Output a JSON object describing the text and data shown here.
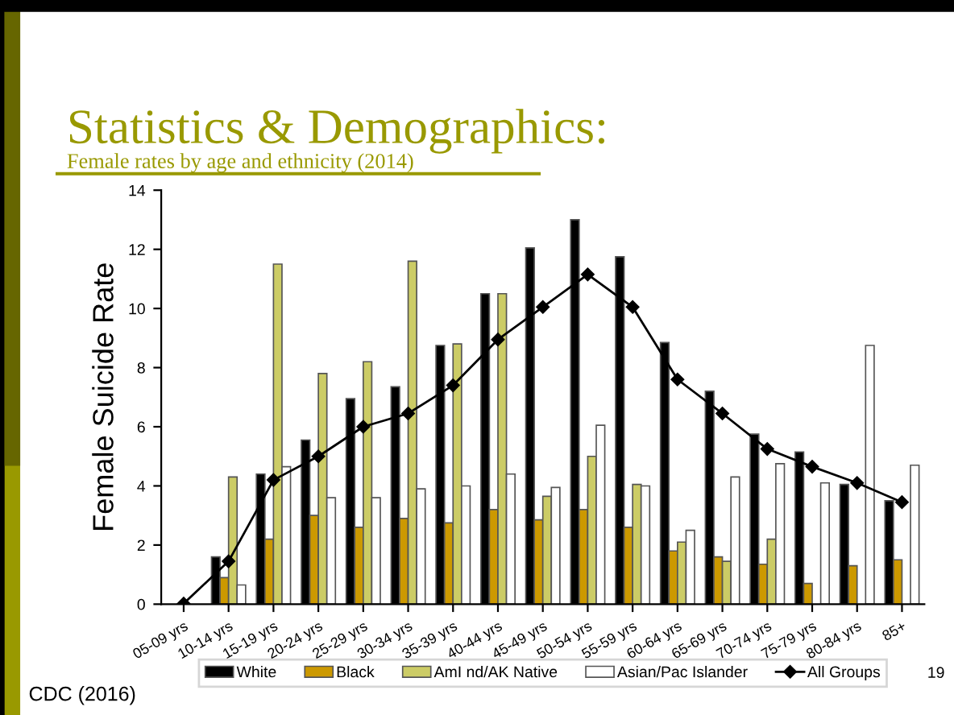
{
  "chart_data": {
    "type": "bar",
    "title": "Statistics & Demographics:",
    "subtitle": "Female rates by age and ethnicity (2014)",
    "ylabel": "Female Suicide Rate",
    "categories": [
      "05-09 yrs",
      "10-14 yrs",
      "15-19 yrs",
      "20-24 yrs",
      "25-29 yrs",
      "30-34 yrs",
      "35-39 yrs",
      "40-44 yrs",
      "45-49 yrs",
      "50-54 yrs",
      "55-59 yrs",
      "60-64 yrs",
      "65-69 yrs",
      "70-74 yrs",
      "75-79 yrs",
      "80-84 yrs",
      "85+"
    ],
    "series": [
      {
        "name": "White",
        "color": "#000000",
        "values": [
          null,
          1.6,
          4.4,
          5.55,
          6.95,
          7.35,
          8.75,
          10.5,
          12.05,
          13.0,
          11.75,
          8.85,
          7.2,
          5.75,
          5.15,
          4.05,
          3.5
        ]
      },
      {
        "name": "Black",
        "color": "#cc9900",
        "values": [
          null,
          0.9,
          2.2,
          3.0,
          2.6,
          2.9,
          2.75,
          3.2,
          2.85,
          3.2,
          2.6,
          1.8,
          1.6,
          1.35,
          0.7,
          1.3,
          1.5
        ]
      },
      {
        "name": "AmI nd/AK Native",
        "color": "#cccc66",
        "values": [
          null,
          4.3,
          11.5,
          7.8,
          8.2,
          11.6,
          8.8,
          10.5,
          3.65,
          5.0,
          4.05,
          2.1,
          1.45,
          2.2,
          null,
          null,
          null
        ]
      },
      {
        "name": "Asian/Pac Islander",
        "color": "#ffffff",
        "values": [
          null,
          0.65,
          4.65,
          3.6,
          3.6,
          3.9,
          4.0,
          4.4,
          3.95,
          6.05,
          4.0,
          2.5,
          4.3,
          4.75,
          4.1,
          8.75,
          4.7
        ]
      },
      {
        "name": "All Groups",
        "type": "line",
        "color": "#000000",
        "marker": "diamond",
        "values": [
          0.02,
          1.45,
          4.2,
          5.0,
          6.0,
          6.45,
          7.4,
          8.95,
          10.05,
          11.15,
          10.05,
          7.6,
          6.45,
          5.25,
          4.65,
          4.1,
          3.45
        ]
      }
    ],
    "ylim": [
      0,
      14
    ],
    "yticks": [
      0,
      2,
      4,
      6,
      8,
      10,
      12,
      14
    ],
    "grid": false,
    "legend": "bottom",
    "annotations": [
      "CDC (2016)",
      "19"
    ]
  }
}
